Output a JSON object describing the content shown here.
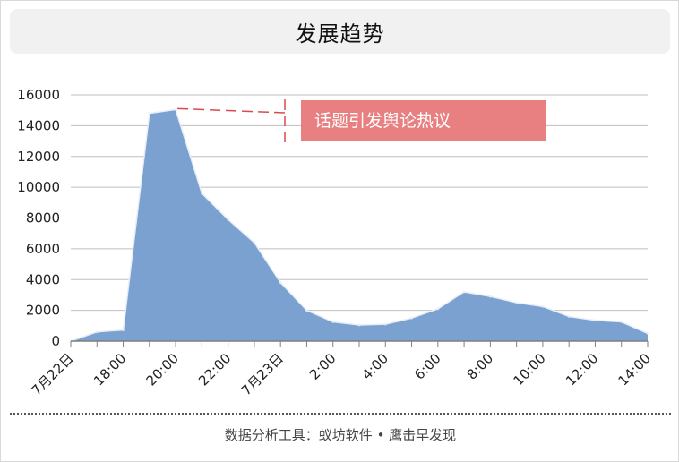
{
  "header": {
    "title": "发展趋势"
  },
  "footer": {
    "source": "数据分析工具：蚁坊软件 • 鹰击早发现"
  },
  "annotation": {
    "text": "话题引发舆论热议",
    "color": "#e87f80"
  },
  "colors": {
    "area_fill": "#7aa1d0",
    "area_line": "#e8eef8",
    "grid": "#bfbfbf",
    "axis": "#7f7f7f",
    "annotation_dash": "#d94a4f"
  },
  "chart_data": {
    "type": "area",
    "title": "发展趋势",
    "xlabel": "",
    "ylabel": "",
    "ylim": [
      0,
      16000
    ],
    "yticks": [
      "0",
      "2000",
      "4000",
      "6000",
      "8000",
      "10000",
      "12000",
      "14000",
      "16000"
    ],
    "xtick_labels": [
      "7月22日",
      "18:00",
      "20:00",
      "22:00",
      "7月23日",
      "2:00",
      "4:00",
      "6:00",
      "8:00",
      "10:00",
      "12:00",
      "14:00"
    ],
    "x": [
      "16:00",
      "17:00",
      "18:00",
      "19:00",
      "20:00",
      "21:00",
      "22:00",
      "23:00",
      "0:00",
      "1:00",
      "2:00",
      "3:00",
      "4:00",
      "5:00",
      "6:00",
      "7:00",
      "8:00",
      "9:00",
      "10:00",
      "11:00",
      "12:00",
      "13:00",
      "14:00"
    ],
    "values": [
      0,
      600,
      720,
      14800,
      15050,
      9600,
      7900,
      6400,
      3800,
      2000,
      1250,
      1050,
      1100,
      1500,
      2100,
      3200,
      2900,
      2500,
      2250,
      1600,
      1350,
      1250,
      500
    ],
    "grid": true,
    "legend": "none"
  }
}
